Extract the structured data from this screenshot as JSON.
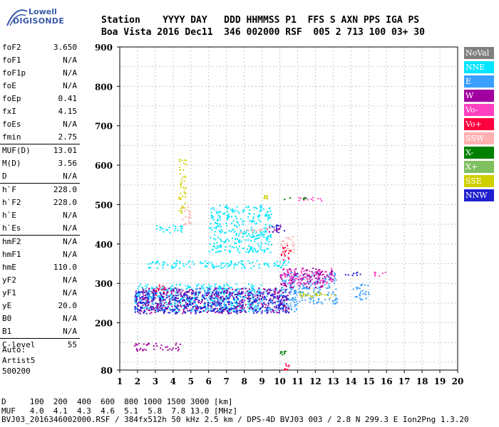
{
  "logo": {
    "line1": "Lowell",
    "line2": "DIGISONDE"
  },
  "header": {
    "line1": "Station    YYYY DAY   DDD HHMMSS P1  FFS S AXN PPS IGA PS",
    "line2": "Boa Vista 2016 Dec11  346 002000 RSF  005 2 713 100 03+ 30"
  },
  "params": [
    {
      "k": "foF2",
      "v": "3.650"
    },
    {
      "k": "foF1",
      "v": "N/A"
    },
    {
      "k": "foF1p",
      "v": "N/A"
    },
    {
      "k": "foE",
      "v": "N/A"
    },
    {
      "k": "foEp",
      "v": "0.41"
    },
    {
      "k": "fxI",
      "v": "4.15"
    },
    {
      "k": "foEs",
      "v": "N/A"
    },
    {
      "k": "fmin",
      "v": "2.75"
    },
    {
      "k": "MUF(D)",
      "v": "13.01"
    },
    {
      "k": "M(D)",
      "v": "3.56"
    },
    {
      "k": "D",
      "v": "N/A"
    },
    {
      "k": "h`F",
      "v": "228.0"
    },
    {
      "k": "h`F2",
      "v": "228.0"
    },
    {
      "k": "h`E",
      "v": "N/A"
    },
    {
      "k": "h`Es",
      "v": "N/A"
    },
    {
      "k": "hmF2",
      "v": "N/A"
    },
    {
      "k": "hmF1",
      "v": "N/A"
    },
    {
      "k": "hmE",
      "v": "110.0"
    },
    {
      "k": "yF2",
      "v": "N/A"
    },
    {
      "k": "yF1",
      "v": "N/A"
    },
    {
      "k": "yE",
      "v": "20.0"
    },
    {
      "k": "B0",
      "v": "N/A"
    },
    {
      "k": "B1",
      "v": "N/A"
    },
    {
      "k": "C-level",
      "v": "55"
    }
  ],
  "auto": {
    "l1": "Auto:",
    "l2": "Artist5",
    "l3": "500200"
  },
  "legend": [
    {
      "label": "NoVal",
      "bg": "#808080",
      "fg": "#ffffff"
    },
    {
      "label": "NNE",
      "bg": "#00e5ff",
      "fg": "#ffffff"
    },
    {
      "label": "E",
      "bg": "#3aa0ff",
      "fg": "#ffffff"
    },
    {
      "label": "W",
      "bg": "#a000a0",
      "fg": "#ffffff"
    },
    {
      "label": "Vo-",
      "bg": "#ff40c0",
      "fg": "#ffffff"
    },
    {
      "label": "Vo+",
      "bg": "#ff0040",
      "fg": "#ffffff"
    },
    {
      "label": "SSW",
      "bg": "#ffb0b0",
      "fg": "#ffffff"
    },
    {
      "label": "X-",
      "bg": "#008000",
      "fg": "#ffffff"
    },
    {
      "label": "X+",
      "bg": "#80c060",
      "fg": "#ffffff"
    },
    {
      "label": "SSE",
      "bg": "#d0d000",
      "fg": "#ffffff"
    },
    {
      "label": "NNW",
      "bg": "#2020d0",
      "fg": "#ffffff"
    }
  ],
  "footer": {
    "l1": "D     100  200  400  600  800 1000 1500 3000 [km]",
    "l2": "MUF   4.0  4.1  4.3  4.6  5.1  5.8  7.8 13.0 [MHz]",
    "l3": "BVJ03_2016346002000.RSF / 384fx512h 50 kHz 2.5 km / DPS-4D BVJ03 003 / 2.8 N 299.3 E Ion2Png 1.3.20"
  },
  "chart_data": {
    "type": "scatter",
    "title": "",
    "xlabel": "",
    "ylabel": "",
    "xlim": [
      1,
      20
    ],
    "ylim": [
      80,
      900
    ],
    "xticks": [
      1,
      2,
      3,
      4,
      5,
      6,
      7,
      8,
      9,
      10,
      11,
      12,
      13,
      14,
      15,
      16,
      17,
      18,
      19,
      20
    ],
    "yticks": [
      80,
      200,
      300,
      400,
      500,
      600,
      700,
      800,
      900
    ],
    "grid": true,
    "series": [
      {
        "name": "NNE",
        "color": "#00e5ff",
        "regions": [
          [
            1.8,
            9.0,
            230,
            300
          ],
          [
            2.5,
            10.5,
            340,
            360
          ],
          [
            6.0,
            9.5,
            380,
            500
          ],
          [
            3.0,
            4.5,
            430,
            450
          ]
        ]
      },
      {
        "name": "E",
        "color": "#3aa0ff",
        "regions": [
          [
            1.8,
            11.0,
            230,
            290
          ],
          [
            10.0,
            13.2,
            250,
            330
          ],
          [
            14.0,
            15.0,
            260,
            300
          ]
        ]
      },
      {
        "name": "W",
        "color": "#a000a0",
        "regions": [
          [
            1.8,
            4.5,
            130,
            150
          ],
          [
            1.8,
            10.5,
            225,
            290
          ],
          [
            10.0,
            12.5,
            290,
            340
          ],
          [
            9.2,
            10.0,
            430,
            450
          ],
          [
            12.0,
            13.0,
            310,
            340
          ]
        ]
      },
      {
        "name": "Vo-",
        "color": "#ff40c0",
        "regions": [
          [
            10.0,
            13.0,
            300,
            340
          ],
          [
            11.0,
            12.5,
            510,
            520
          ],
          [
            15.0,
            16.0,
            320,
            330
          ]
        ]
      },
      {
        "name": "Vo+",
        "color": "#ff0040",
        "regions": [
          [
            10.2,
            10.5,
            80,
            100
          ],
          [
            10.0,
            10.6,
            360,
            400
          ],
          [
            3.0,
            3.5,
            270,
            300
          ]
        ]
      },
      {
        "name": "SSW",
        "color": "#ffb0b0",
        "regions": [
          [
            7.6,
            9.6,
            430,
            440
          ],
          [
            10.0,
            10.8,
            380,
            420
          ],
          [
            4.5,
            5.0,
            450,
            500
          ]
        ]
      },
      {
        "name": "X-",
        "color": "#008000",
        "regions": [
          [
            10.2,
            11.5,
            515,
            520
          ],
          [
            10.0,
            10.3,
            120,
            130
          ]
        ]
      },
      {
        "name": "X+",
        "color": "#80c060",
        "regions": [
          [
            11.0,
            13.0,
            270,
            280
          ]
        ]
      },
      {
        "name": "SSE",
        "color": "#d0d000",
        "regions": [
          [
            11.0,
            13.3,
            265,
            275
          ],
          [
            4.3,
            4.7,
            480,
            620
          ],
          [
            9.0,
            9.3,
            515,
            525
          ]
        ]
      },
      {
        "name": "NNW",
        "color": "#2020d0",
        "regions": [
          [
            1.8,
            10.5,
            225,
            280
          ],
          [
            9.5,
            10.3,
            430,
            450
          ],
          [
            13.5,
            14.5,
            320,
            330
          ]
        ]
      }
    ]
  }
}
